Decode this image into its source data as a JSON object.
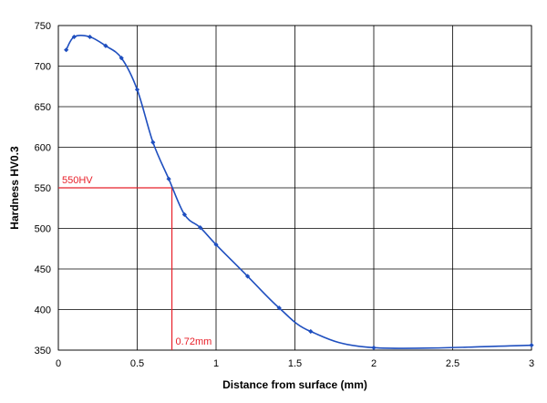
{
  "chart_data": {
    "type": "line",
    "xlabel": "Distance from surface (mm)",
    "ylabel": "Hardness HV0.3",
    "xlim": [
      0,
      3
    ],
    "ylim": [
      350,
      750
    ],
    "xticks": [
      0,
      0.5,
      1,
      1.5,
      2,
      2.5,
      3
    ],
    "xtick_labels": [
      "0",
      "0.5",
      "1",
      "1.5",
      "2",
      "2.5",
      "3"
    ],
    "yticks": [
      350,
      400,
      450,
      500,
      550,
      600,
      650,
      700,
      750
    ],
    "ytick_labels": [
      "350",
      "400",
      "450",
      "500",
      "550",
      "600",
      "650",
      "700",
      "750"
    ],
    "grid": true,
    "smooth": true,
    "series": [
      {
        "color": "#1f4fbf",
        "x": [
          0.05,
          0.1,
          0.2,
          0.3,
          0.4,
          0.5,
          0.6,
          0.7,
          0.8,
          0.9,
          1.0,
          1.2,
          1.4,
          1.6,
          2.0,
          3.0
        ],
        "y": [
          720,
          736,
          736,
          725,
          710,
          671,
          606,
          561,
          517,
          501,
          480,
          441,
          402,
          373,
          353,
          356
        ]
      }
    ],
    "annotations": {
      "color": "#e8202a",
      "hline": {
        "y": 550,
        "label": "550HV"
      },
      "vline": {
        "x": 0.72,
        "label": "0.72mm"
      }
    }
  }
}
